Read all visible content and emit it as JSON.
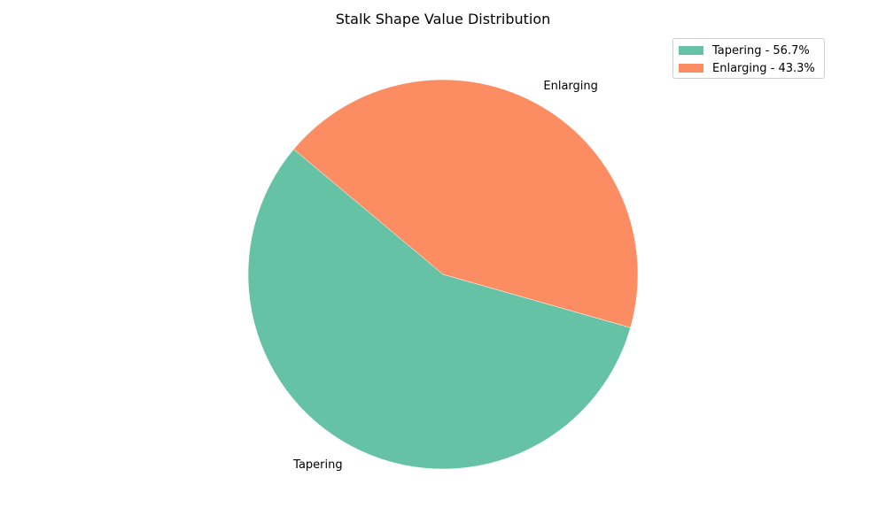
{
  "chart_data": {
    "type": "pie",
    "title": "Stalk Shape Value Distribution",
    "slices": [
      {
        "label": "Tapering",
        "value": 56.7,
        "color": "#66c2a5",
        "legend": "Tapering - 56.7%"
      },
      {
        "label": "Enlarging",
        "value": 43.3,
        "color": "#fc8d62",
        "legend": "Enlarging - 43.3%"
      }
    ],
    "legend_position": "top-right",
    "start_angle_deg": 140
  }
}
